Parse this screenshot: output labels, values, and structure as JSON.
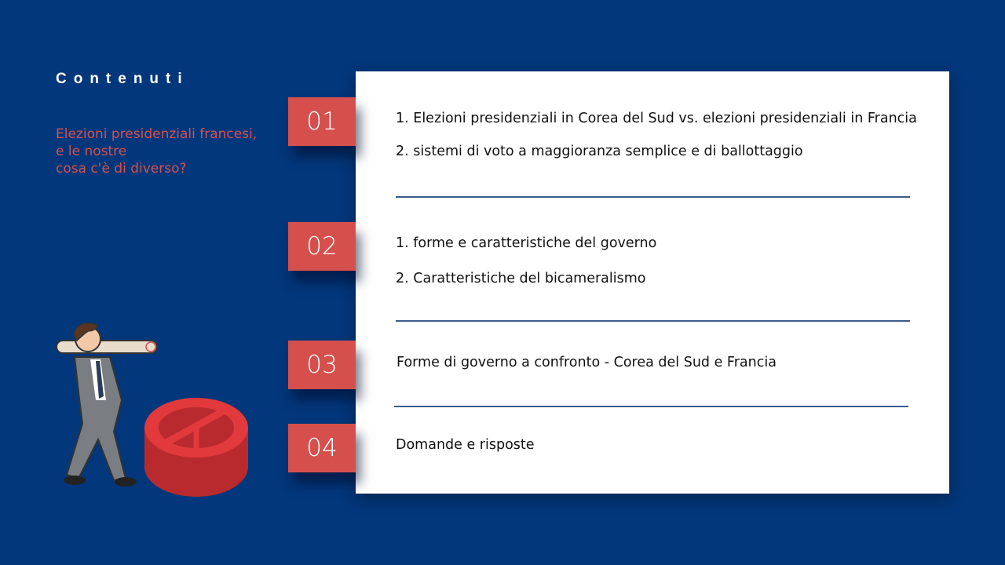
{
  "title": "Contenuti",
  "subtitle": "Elezioni presidenziali francesi,\ne le nostre\ncosa c'è di diverso?",
  "sections": [
    {
      "number": "01",
      "items": [
        "1. Elezioni presidenziali in Corea del Sud vs. elezioni presidenziali in Francia",
        "2. sistemi di voto a maggioranza semplice e di ballottaggio"
      ]
    },
    {
      "number": "02",
      "items": [
        "1. forme e caratteristiche del governo",
        "2. Caratteristiche del bicameralismo"
      ]
    },
    {
      "number": "03",
      "items": [
        "Forme di governo a confronto - Corea del Sud e Francia"
      ]
    },
    {
      "number": "04",
      "items": [
        "Domande e risposte"
      ]
    }
  ],
  "colors": {
    "background": "#03377b",
    "accent": "#d5504d",
    "card": "#ffffff"
  }
}
